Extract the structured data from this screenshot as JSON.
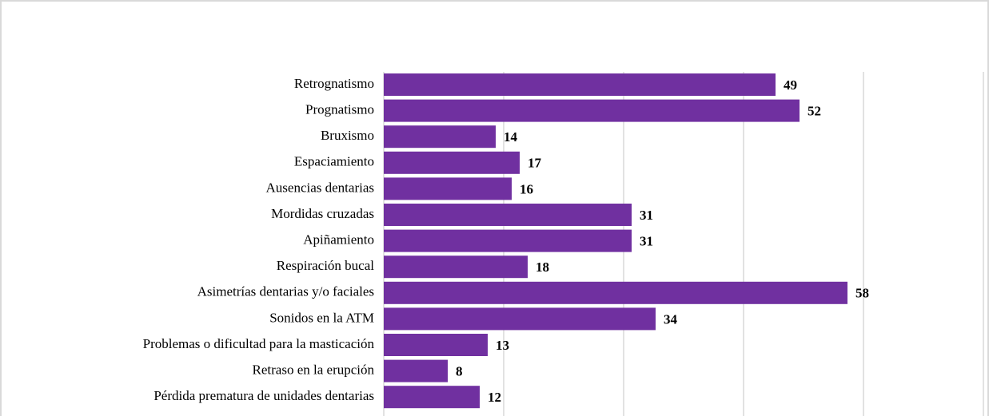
{
  "chart_data": {
    "type": "bar",
    "orientation": "horizontal",
    "categories": [
      "Retrognatismo",
      "Prognatismo",
      "Bruxismo",
      "Espaciamiento",
      "Ausencias dentarias",
      "Mordidas cruzadas",
      "Apiñamiento",
      "Respiración bucal",
      "Asimetrías dentarias y/o faciales",
      "Sonidos en la ATM",
      "Problemas o dificultad para la masticación",
      "Retraso en la erupción",
      "Pérdida prematura de unidades dentarias"
    ],
    "values": [
      49,
      52,
      14,
      17,
      16,
      31,
      31,
      18,
      58,
      34,
      13,
      8,
      12
    ],
    "color": "#7030a0",
    "xlim": [
      0,
      75
    ],
    "xticks": [
      0,
      15,
      30,
      45,
      60,
      75
    ],
    "grid": true
  }
}
